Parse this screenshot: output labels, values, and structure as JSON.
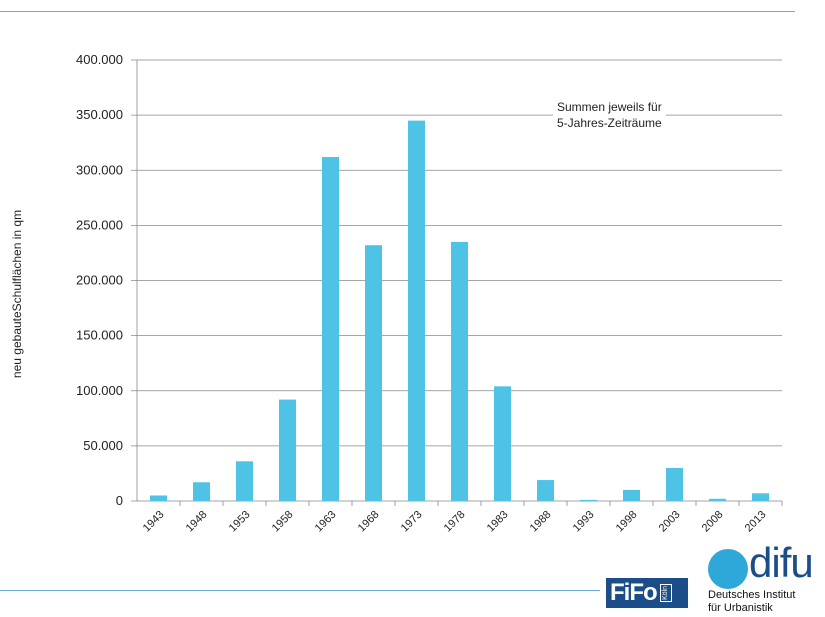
{
  "colors": {
    "bar": "#4ec3e6",
    "rule": "#6aa9d8",
    "axis": "#888888",
    "text": "#222222",
    "fifo_bg": "#1b4e88",
    "difu_dot": "#2ea8d8",
    "difu_text": "#1b4e88"
  },
  "chart_data": {
    "type": "bar",
    "title": "",
    "xlabel": "",
    "ylabel": "neu gebauteSchulflächen in qm",
    "annotation": [
      "Summen jeweils für",
      "5-Jahres-Zeiträume"
    ],
    "categories": [
      "1943",
      "1948",
      "1953",
      "1958",
      "1963",
      "1968",
      "1973",
      "1978",
      "1983",
      "1988",
      "1993",
      "1998",
      "2003",
      "2008",
      "2013"
    ],
    "values": [
      5000,
      17000,
      36000,
      92000,
      312000,
      232000,
      345000,
      235000,
      104000,
      19000,
      1000,
      10000,
      30000,
      2000,
      7000
    ],
    "ylim": [
      0,
      400000
    ],
    "yticks": [
      0,
      50000,
      100000,
      150000,
      200000,
      250000,
      300000,
      350000,
      400000
    ],
    "ytick_labels": [
      "0",
      "50.000",
      "100.000",
      "150.000",
      "200.000",
      "250.000",
      "300.000",
      "350.000",
      "400.000"
    ],
    "grid": false
  },
  "logos": {
    "fifo": {
      "main": "FiFo",
      "sub": "Köln"
    },
    "difu": {
      "word": "difu",
      "line1": "Deutsches Institut",
      "line2": "für Urbanistik"
    }
  }
}
